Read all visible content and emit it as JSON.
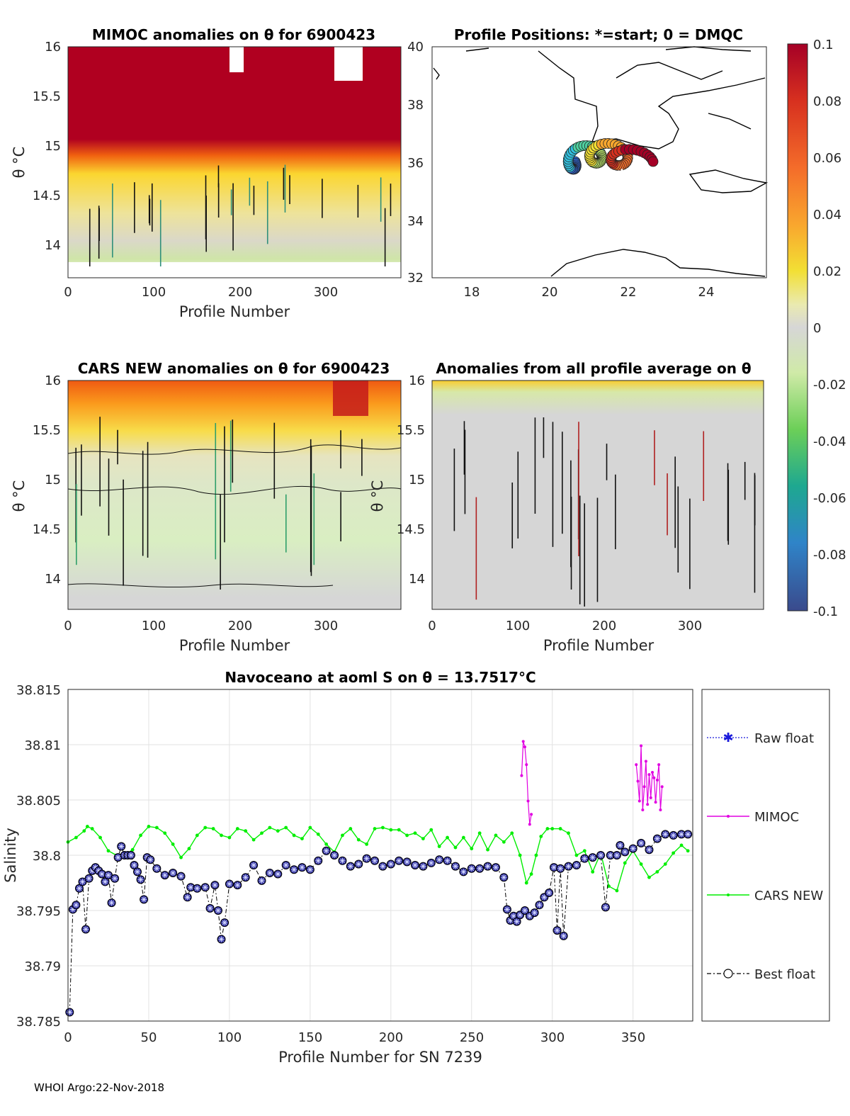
{
  "colors": {
    "red": "#b00020",
    "gray": "#d6d6d6",
    "raw": "#1a1adb",
    "mimoc": "#e100e1",
    "cars": "#00ee00",
    "best": "#000000"
  },
  "footer": "WHOI Argo:22-Nov-2018",
  "panel_mimoc": {
    "title": "MIMOC anomalies on θ  for 6900423",
    "xlabel": "Profile Number",
    "ylabel": "θ °C",
    "xticks": [
      "0",
      "100",
      "200",
      "300"
    ],
    "yticks": [
      "16",
      "15.5",
      "15",
      "14.5",
      "14"
    ]
  },
  "panel_map": {
    "title": "Profile Positions: *=start; 0 = DMQC",
    "xticks": [
      "18",
      "20",
      "22",
      "24"
    ],
    "yticks": [
      "40",
      "38",
      "36",
      "34",
      "32"
    ]
  },
  "colorbar": {
    "ticks": [
      "0.1",
      "0.08",
      "0.06",
      "0.04",
      "0.02",
      "0",
      "-0.02",
      "-0.04",
      "-0.06",
      "-0.08",
      "-0.1"
    ]
  },
  "panel_cars": {
    "title": "CARS NEW anomalies on θ for 6900423",
    "xlabel": "Profile Number",
    "ylabel": "θ °C",
    "xticks": [
      "0",
      "100",
      "200",
      "300"
    ],
    "yticks": [
      "16",
      "15.5",
      "15",
      "14.5",
      "14"
    ]
  },
  "panel_avg": {
    "title": "Anomalies from all profile average on θ",
    "xlabel": "Profile Number",
    "ylabel": "θ °C",
    "xticks": [
      "0",
      "100",
      "200",
      "300"
    ],
    "yticks": [
      "16",
      "15.5",
      "15",
      "14.5",
      "14"
    ]
  },
  "chart_data": {
    "type": "line",
    "title": "Navoceano at aoml S on θ = 13.7517°C",
    "xlabel": "Profile Number for SN 7239",
    "ylabel": "Salinity",
    "xlim": [
      0,
      387
    ],
    "ylim": [
      38.785,
      38.815
    ],
    "xticks": [
      "0",
      "50",
      "100",
      "150",
      "200",
      "250",
      "300",
      "350"
    ],
    "yticks": [
      "38.815",
      "38.81",
      "38.805",
      "38.8",
      "38.795",
      "38.79",
      "38.785"
    ],
    "grid": true,
    "legend": [
      "Raw float",
      "MIMOC",
      "CARS NEW",
      "Best float"
    ],
    "series": [
      {
        "name": "Best float",
        "x": [
          1,
          3,
          5,
          7,
          9,
          11,
          13,
          15,
          17,
          19,
          21,
          23,
          25,
          27,
          29,
          31,
          33,
          35,
          37,
          39,
          41,
          43,
          45,
          47,
          49,
          51,
          55,
          60,
          65,
          70,
          74,
          76,
          80,
          85,
          88,
          91,
          93,
          95,
          97,
          100,
          105,
          110,
          115,
          120,
          125,
          130,
          135,
          140,
          145,
          150,
          155,
          160,
          165,
          170,
          175,
          180,
          185,
          190,
          195,
          200,
          205,
          210,
          215,
          220,
          225,
          230,
          235,
          240,
          245,
          250,
          255,
          260,
          265,
          270,
          272,
          274,
          276,
          278,
          280,
          283,
          286,
          289,
          292,
          295,
          298,
          301,
          303,
          305,
          307,
          310,
          315,
          320,
          325,
          330,
          333,
          336,
          340,
          342,
          345,
          350,
          355,
          360,
          365,
          370,
          375,
          380,
          384
        ],
        "values": [
          38.7858,
          38.7951,
          38.7955,
          38.797,
          38.7976,
          38.7933,
          38.7979,
          38.7986,
          38.7989,
          38.7986,
          38.7983,
          38.7976,
          38.7982,
          38.7957,
          38.7979,
          38.7998,
          38.8008,
          38.8,
          38.8,
          38.8,
          38.7991,
          38.7985,
          38.7978,
          38.796,
          38.7998,
          38.7996,
          38.7988,
          38.7982,
          38.7984,
          38.7981,
          38.7962,
          38.7971,
          38.797,
          38.7971,
          38.7952,
          38.7973,
          38.795,
          38.7924,
          38.7939,
          38.7974,
          38.7973,
          38.798,
          38.7991,
          38.7977,
          38.7984,
          38.7983,
          38.7991,
          38.7987,
          38.7989,
          38.7987,
          38.7995,
          38.8004,
          38.8,
          38.7995,
          38.799,
          38.7992,
          38.7997,
          38.7995,
          38.799,
          38.7992,
          38.7995,
          38.7994,
          38.7991,
          38.799,
          38.7993,
          38.7996,
          38.7995,
          38.799,
          38.7985,
          38.7988,
          38.7988,
          38.799,
          38.7989,
          38.798,
          38.7951,
          38.7941,
          38.7945,
          38.794,
          38.7946,
          38.795,
          38.7945,
          38.7948,
          38.7955,
          38.7962,
          38.7966,
          38.7989,
          38.7932,
          38.7988,
          38.7927,
          38.799,
          38.7991,
          38.7997,
          38.7998,
          38.8,
          38.7953,
          38.8,
          38.8,
          38.8009,
          38.8003,
          38.8006,
          38.8011,
          38.8005,
          38.8015,
          38.8019,
          38.8018,
          38.8019,
          38.8019
        ]
      },
      {
        "name": "CARS NEW",
        "x": [
          0,
          5,
          10,
          12,
          15,
          20,
          25,
          30,
          35,
          40,
          45,
          50,
          55,
          60,
          65,
          70,
          75,
          80,
          85,
          90,
          95,
          100,
          105,
          110,
          115,
          120,
          125,
          130,
          135,
          140,
          145,
          150,
          155,
          160,
          165,
          170,
          175,
          180,
          185,
          190,
          195,
          200,
          205,
          210,
          215,
          220,
          225,
          230,
          235,
          240,
          245,
          250,
          255,
          260,
          265,
          270,
          275,
          280,
          284,
          287,
          290,
          293,
          297,
          300,
          305,
          310,
          315,
          320,
          325,
          330,
          335,
          340,
          345,
          350,
          355,
          360,
          365,
          370,
          375,
          380,
          384
        ],
        "values": [
          38.8012,
          38.8016,
          38.8022,
          38.8026,
          38.8024,
          38.8016,
          38.8004,
          38.8,
          38.8,
          38.8005,
          38.8018,
          38.8026,
          38.8025,
          38.802,
          38.801,
          38.7998,
          38.8006,
          38.8018,
          38.8025,
          38.8024,
          38.8018,
          38.8016,
          38.8024,
          38.8022,
          38.8014,
          38.802,
          38.8025,
          38.8022,
          38.8025,
          38.8018,
          38.8015,
          38.8025,
          38.8019,
          38.801,
          38.8003,
          38.8018,
          38.8024,
          38.8014,
          38.801,
          38.8024,
          38.8025,
          38.8023,
          38.8023,
          38.8018,
          38.802,
          38.8015,
          38.8023,
          38.8008,
          38.8016,
          38.8007,
          38.8016,
          38.8006,
          38.802,
          38.8005,
          38.8018,
          38.8012,
          38.802,
          38.8,
          38.7975,
          38.7983,
          38.8,
          38.8017,
          38.8024,
          38.8024,
          38.8024,
          38.802,
          38.8,
          38.8004,
          38.7985,
          38.8002,
          38.7972,
          38.7968,
          38.7993,
          38.8004,
          38.7992,
          38.798,
          38.7985,
          38.7992,
          38.8002,
          38.8009,
          38.8004
        ]
      },
      {
        "name": "MIMOC",
        "x": [
          281,
          282,
          283,
          284,
          285,
          286,
          287,
          352,
          353,
          354,
          355,
          356,
          357,
          358,
          359,
          360,
          361,
          362,
          363,
          364,
          365,
          366,
          367,
          368
        ],
        "values": [
          38.8072,
          38.8103,
          38.8098,
          38.8082,
          38.8049,
          38.8028,
          38.8037,
          38.8082,
          38.8067,
          38.8049,
          38.8099,
          38.8041,
          38.8062,
          38.8085,
          38.8046,
          38.8073,
          38.8052,
          38.8075,
          38.807,
          38.8048,
          38.8068,
          38.8082,
          38.8041,
          38.8062
        ]
      }
    ]
  }
}
